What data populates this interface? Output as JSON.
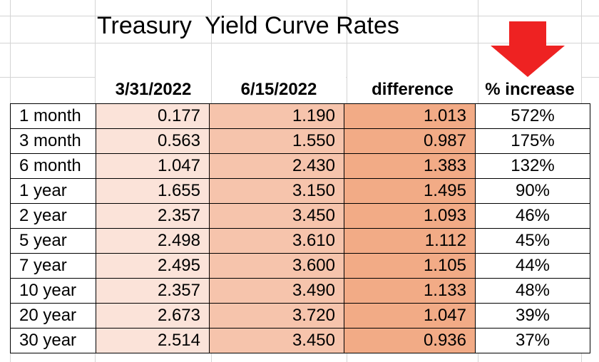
{
  "title": "Treasury  Yield Curve Rates",
  "colors": {
    "arrow": "#ee2222",
    "col_date1": "#fbe3d9",
    "col_date2": "#f6c4ac",
    "col_difference": "#f2ab86"
  },
  "icons": {
    "arrow": "red-down-arrow-icon"
  },
  "headers": [
    "3/31/2022",
    "6/15/2022",
    "difference",
    "% increase"
  ],
  "rows": [
    {
      "term": "1 month",
      "date1": "0.177",
      "date2": "1.190",
      "difference": "1.013",
      "pct": "572%"
    },
    {
      "term": "3 month",
      "date1": "0.563",
      "date2": "1.550",
      "difference": "0.987",
      "pct": "175%"
    },
    {
      "term": "6 month",
      "date1": "1.047",
      "date2": "2.430",
      "difference": "1.383",
      "pct": "132%"
    },
    {
      "term": "1 year",
      "date1": "1.655",
      "date2": "3.150",
      "difference": "1.495",
      "pct": "90%"
    },
    {
      "term": "2 year",
      "date1": "2.357",
      "date2": "3.450",
      "difference": "1.093",
      "pct": "46%"
    },
    {
      "term": "5 year",
      "date1": "2.498",
      "date2": "3.610",
      "difference": "1.112",
      "pct": "45%"
    },
    {
      "term": "7 year",
      "date1": "2.495",
      "date2": "3.600",
      "difference": "1.105",
      "pct": "44%"
    },
    {
      "term": "10 year",
      "date1": "2.357",
      "date2": "3.490",
      "difference": "1.133",
      "pct": "48%"
    },
    {
      "term": "20 year",
      "date1": "2.673",
      "date2": "3.720",
      "difference": "1.047",
      "pct": "39%"
    },
    {
      "term": "30 year",
      "date1": "2.514",
      "date2": "3.450",
      "difference": "0.936",
      "pct": "37%"
    }
  ]
}
